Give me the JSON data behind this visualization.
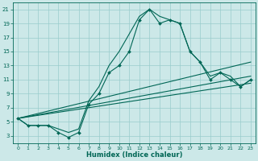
{
  "xlabel": "Humidex (Indice chaleur)",
  "bg_color": "#cce8e8",
  "grid_color": "#99cccc",
  "line_color": "#006655",
  "xlim": [
    -0.5,
    23.5
  ],
  "ylim": [
    2,
    22
  ],
  "xticks": [
    0,
    1,
    2,
    3,
    4,
    5,
    6,
    7,
    8,
    9,
    10,
    11,
    12,
    13,
    14,
    15,
    16,
    17,
    18,
    19,
    20,
    21,
    22,
    23
  ],
  "yticks": [
    3,
    5,
    7,
    9,
    11,
    13,
    15,
    17,
    19,
    21
  ],
  "series_main": {
    "x": [
      0,
      1,
      2,
      3,
      4,
      5,
      6,
      7,
      8,
      9,
      10,
      11,
      12,
      13,
      14,
      15,
      16,
      17,
      18,
      19,
      20,
      21,
      22,
      23
    ],
    "y": [
      5.5,
      4.5,
      4.5,
      4.5,
      3.5,
      2.8,
      3.5,
      7.5,
      9,
      12,
      13,
      15,
      19.5,
      21,
      19,
      19.5,
      19,
      15,
      13.5,
      11,
      12,
      11,
      10,
      11
    ]
  },
  "series_smooth": {
    "x": [
      0,
      1,
      2,
      3,
      4,
      5,
      6,
      7,
      8,
      9,
      10,
      11,
      12,
      13,
      14,
      15,
      16,
      17,
      18,
      19,
      20,
      21,
      22,
      23
    ],
    "y": [
      5.5,
      4.5,
      4.5,
      4.5,
      4,
      3.5,
      4,
      8,
      10,
      13,
      15,
      17.5,
      20,
      21,
      20,
      19.5,
      19,
      15,
      13.5,
      11.5,
      12,
      11.5,
      10,
      11
    ]
  },
  "diag_lines": [
    {
      "x": [
        0,
        23
      ],
      "y": [
        5.5,
        13.5
      ]
    },
    {
      "x": [
        0,
        23
      ],
      "y": [
        5.5,
        11.5
      ]
    },
    {
      "x": [
        0,
        23
      ],
      "y": [
        5.5,
        10.5
      ]
    }
  ]
}
